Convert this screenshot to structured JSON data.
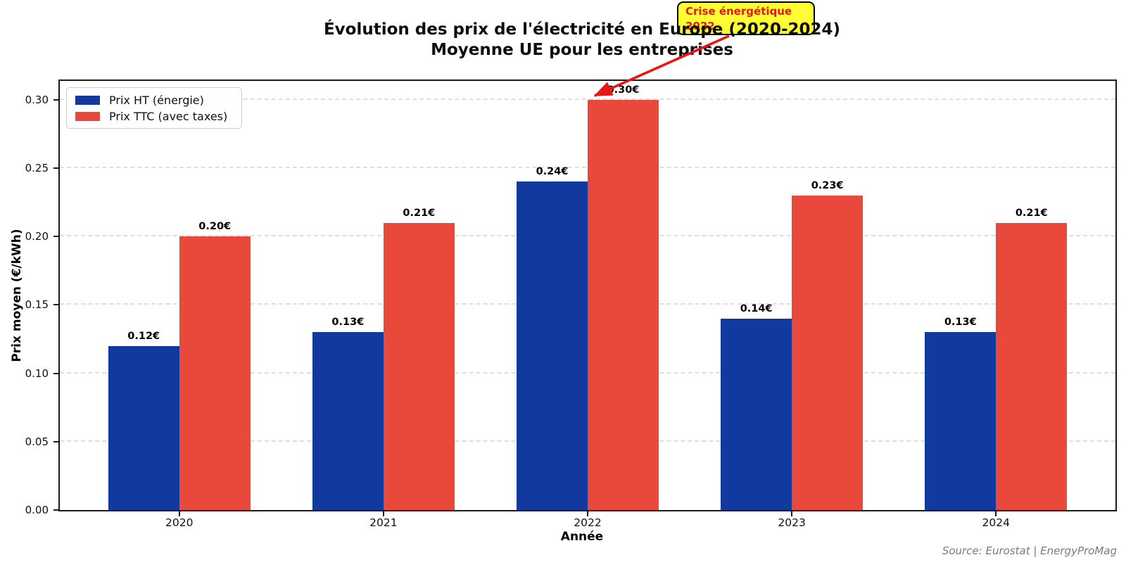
{
  "title": {
    "line1": "Évolution des prix de l'électricité en Europe (2020-2024)",
    "line2": "Moyenne UE pour les entreprises"
  },
  "annotation": {
    "line1": "Crise énergétique",
    "line2": "2022",
    "bg_color": "#FFFF33",
    "border_color": "#000000",
    "text_color": "#ED1414",
    "arrow_color": "#ED1414"
  },
  "legend": {
    "items": [
      {
        "label": "Prix HT (énergie)",
        "color": "#12399E"
      },
      {
        "label": "Prix TTC (avec taxes)",
        "color": "#E8493B"
      }
    ]
  },
  "source": "Source: Eurostat | EnergyProMag",
  "chart_data": {
    "type": "bar",
    "title": "Évolution des prix de l'électricité en Europe (2020-2024)",
    "subtitle": "Moyenne UE pour les entreprises",
    "categories": [
      "2020",
      "2021",
      "2022",
      "2023",
      "2024"
    ],
    "series": [
      {
        "name": "Prix HT (énergie)",
        "color": "#12399E",
        "values": [
          0.12,
          0.13,
          0.24,
          0.14,
          0.13
        ],
        "labels": [
          "0.12€",
          "0.13€",
          "0.24€",
          "0.14€",
          "0.13€"
        ]
      },
      {
        "name": "Prix TTC (avec taxes)",
        "color": "#E8493B",
        "values": [
          0.2,
          0.21,
          0.3,
          0.23,
          0.21
        ],
        "labels": [
          "0.20€",
          "0.21€",
          "0.30€",
          "0.23€",
          "0.21€"
        ]
      }
    ],
    "xlabel": "Année",
    "ylabel": "Prix moyen (€/kWh)",
    "ylim": [
      0,
      0.3138
    ],
    "yticks": [
      "0.00",
      "0.05",
      "0.10",
      "0.15",
      "0.20",
      "0.25",
      "0.30"
    ],
    "grid": "horizontal dashed",
    "legend_position": "upper left",
    "annotation_text": "Crise énergétique 2022",
    "annotation_target": "sommet de la barre TTC 2022"
  }
}
